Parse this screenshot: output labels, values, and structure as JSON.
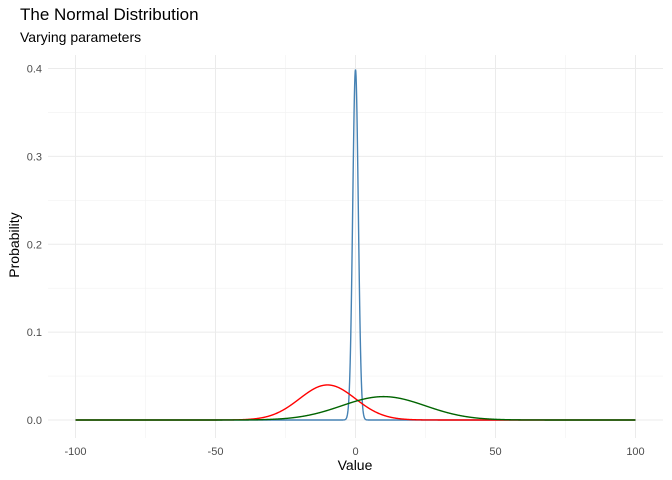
{
  "chart_data": {
    "type": "line",
    "title": "The Normal Distribution",
    "subtitle": "Varying parameters",
    "xlabel": "Value",
    "ylabel": "Probability",
    "xlim": [
      -100,
      100
    ],
    "ylim": [
      0,
      0.4
    ],
    "x_ticks": [
      -100,
      -50,
      0,
      50,
      100
    ],
    "y_ticks": [
      0.0,
      0.1,
      0.2,
      0.3,
      0.4
    ],
    "x_tick_labels": [
      "-100",
      "-50",
      "0",
      "50",
      "100"
    ],
    "y_tick_labels": [
      "0.0",
      "0.1",
      "0.2",
      "0.3",
      "0.4"
    ],
    "grid": true,
    "legend": "none",
    "series": [
      {
        "color": "#4682b4",
        "mean": 0,
        "sd": 1
      },
      {
        "color": "#ff0000",
        "mean": -10,
        "sd": 10
      },
      {
        "color": "#006400",
        "mean": 10,
        "sd": 15
      }
    ]
  }
}
